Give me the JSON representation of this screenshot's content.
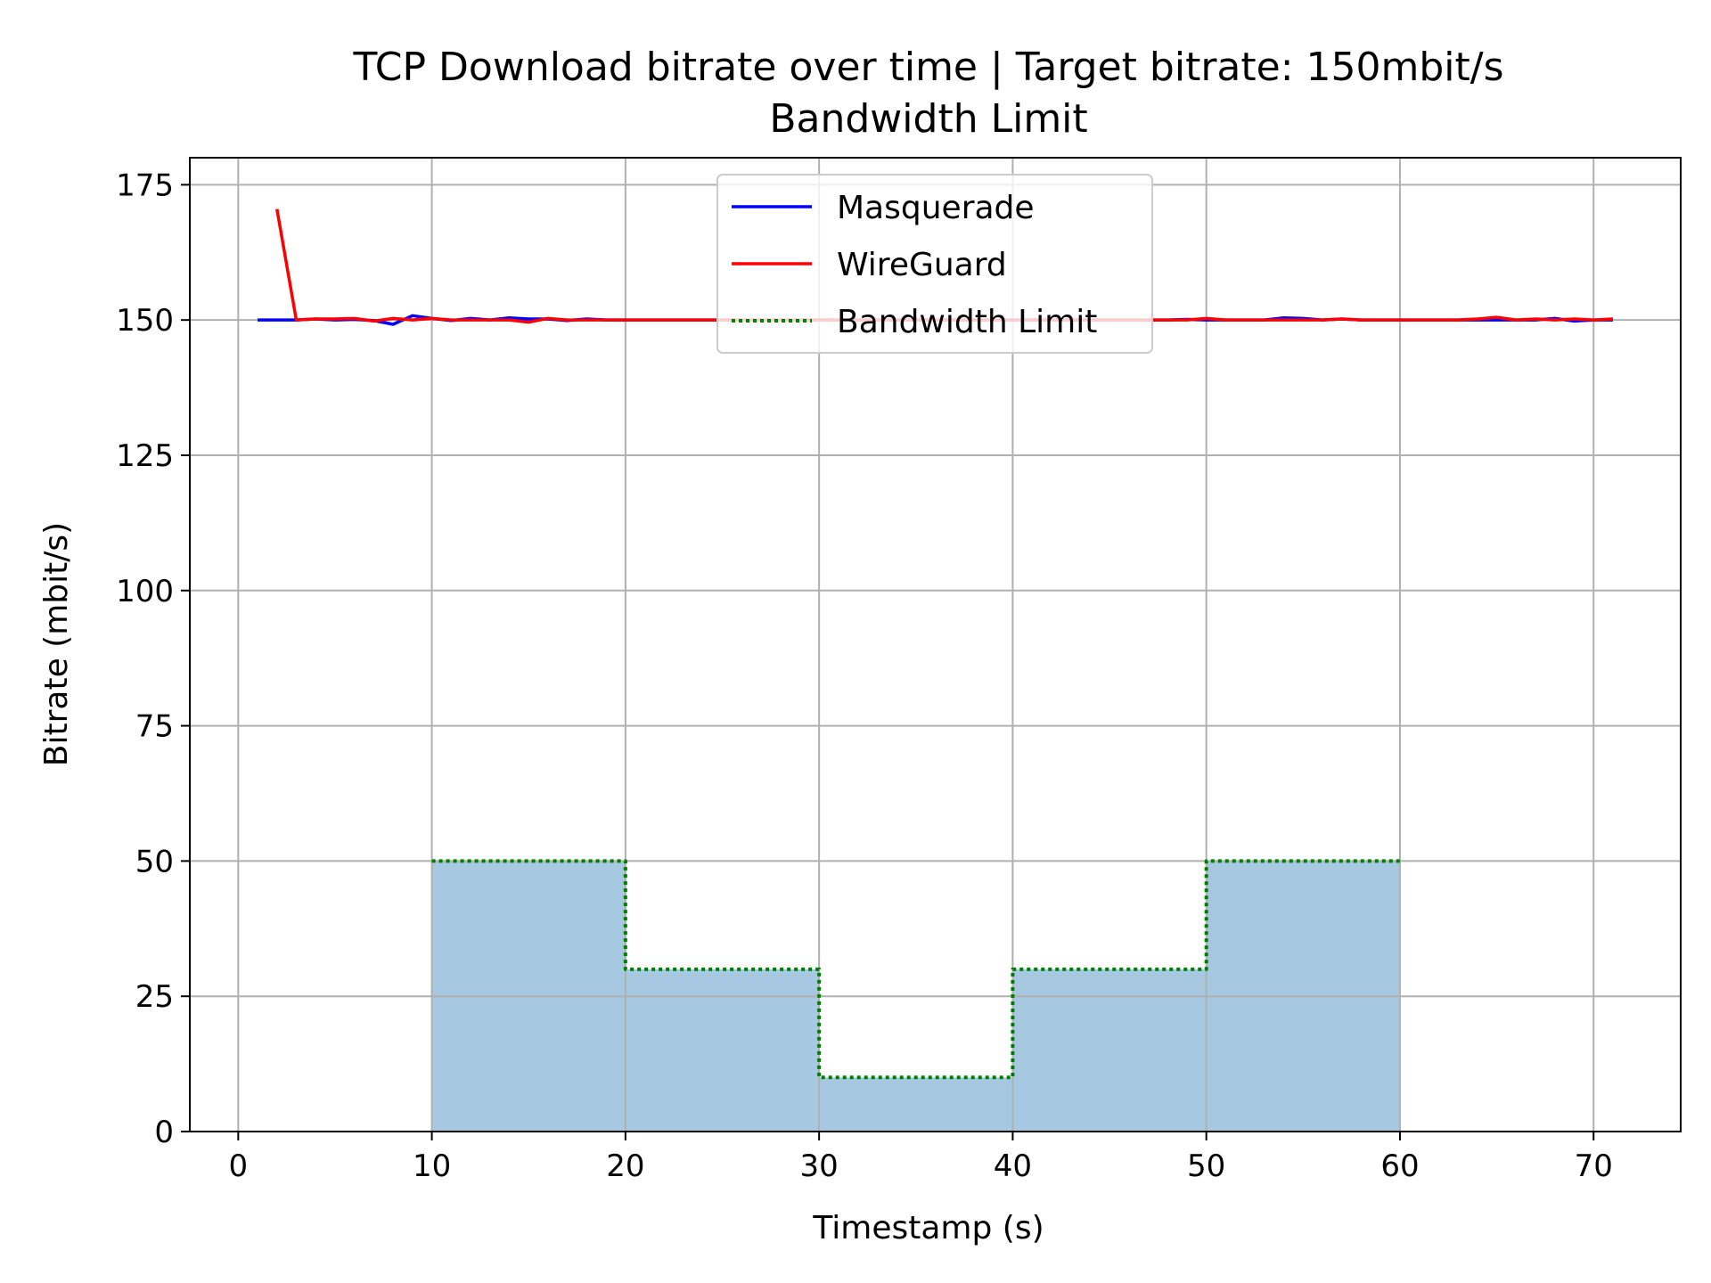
{
  "chart_data": {
    "type": "line",
    "title": "TCP Download bitrate over time | Target bitrate: 150mbit/s",
    "subtitle": "Bandwidth Limit",
    "xlabel": "Timestamp (s)",
    "ylabel": "Bitrate (mbit/s)",
    "xlim": [
      -2.5,
      74.5
    ],
    "ylim": [
      0,
      180
    ],
    "xticks": [
      0,
      10,
      20,
      30,
      40,
      50,
      60,
      70
    ],
    "yticks": [
      0,
      25,
      50,
      75,
      100,
      125,
      150,
      175
    ],
    "grid": true,
    "legend_position": "upper center",
    "series": [
      {
        "name": "Masquerade",
        "color": "#0000ff",
        "style": "solid",
        "x": [
          1,
          2,
          3,
          4,
          5,
          6,
          7,
          8,
          9,
          10,
          11,
          12,
          13,
          14,
          15,
          16,
          17,
          18,
          19,
          20,
          21,
          22,
          23,
          24,
          25,
          26,
          27,
          28,
          29,
          30,
          31,
          32,
          33,
          34,
          35,
          36,
          37,
          38,
          39,
          40,
          41,
          42,
          43,
          44,
          45,
          46,
          47,
          48,
          49,
          50,
          51,
          52,
          53,
          54,
          55,
          56,
          57,
          58,
          59,
          60,
          61,
          62,
          63,
          64,
          65,
          66,
          67,
          68,
          69,
          70,
          71
        ],
        "y": [
          150,
          150,
          150,
          150.2,
          150,
          150.1,
          149.9,
          149.2,
          150.8,
          150.3,
          149.9,
          150.3,
          150,
          150.4,
          150.2,
          150.2,
          149.9,
          150.2,
          150,
          150,
          150,
          150,
          150,
          150,
          150,
          150,
          150,
          150,
          150,
          150,
          150,
          150,
          150,
          150,
          150,
          150,
          150,
          150,
          150,
          150,
          150,
          150,
          150,
          150,
          150,
          150,
          150,
          150,
          150.1,
          150,
          150,
          150,
          150,
          150.4,
          150.3,
          150,
          150.2,
          150,
          150,
          150,
          150,
          150,
          150,
          150,
          150,
          150,
          150,
          150.3,
          149.8,
          150,
          150
        ]
      },
      {
        "name": "WireGuard",
        "color": "#ff0000",
        "style": "solid",
        "x": [
          2,
          3,
          4,
          5,
          6,
          7,
          8,
          9,
          10,
          11,
          12,
          13,
          14,
          15,
          16,
          17,
          18,
          19,
          20,
          21,
          22,
          23,
          24,
          25,
          26,
          27,
          28,
          29,
          30,
          31,
          32,
          33,
          34,
          35,
          36,
          37,
          38,
          39,
          40,
          41,
          42,
          43,
          44,
          45,
          46,
          47,
          48,
          49,
          50,
          51,
          52,
          53,
          54,
          55,
          56,
          57,
          58,
          59,
          60,
          61,
          62,
          63,
          64,
          65,
          66,
          67,
          68,
          69,
          70,
          71
        ],
        "y": [
          170.5,
          150,
          150.2,
          150.2,
          150.3,
          149.8,
          150.3,
          150,
          150.3,
          150,
          150,
          150,
          150,
          149.6,
          150.3,
          150,
          150,
          150,
          150,
          150,
          150,
          150,
          150,
          150,
          150,
          150,
          150,
          150,
          150,
          150,
          150,
          150,
          150,
          150,
          150,
          150,
          150,
          150,
          150,
          150,
          150,
          150,
          150,
          150,
          150,
          150,
          150,
          150,
          150.3,
          150,
          150,
          150,
          150,
          150,
          150,
          150.2,
          150,
          150,
          150,
          150,
          150,
          150,
          150.2,
          150.5,
          150,
          150.2,
          150,
          150.2,
          150,
          150.2
        ]
      },
      {
        "name": "Bandwidth Limit",
        "color": "#008000",
        "style": "dotted",
        "fill_color": "#a6c8e0",
        "x": [
          10,
          20,
          20,
          30,
          30,
          40,
          40,
          50,
          50,
          60
        ],
        "y": [
          50,
          50,
          30,
          30,
          10,
          10,
          30,
          30,
          50,
          50
        ]
      }
    ]
  }
}
